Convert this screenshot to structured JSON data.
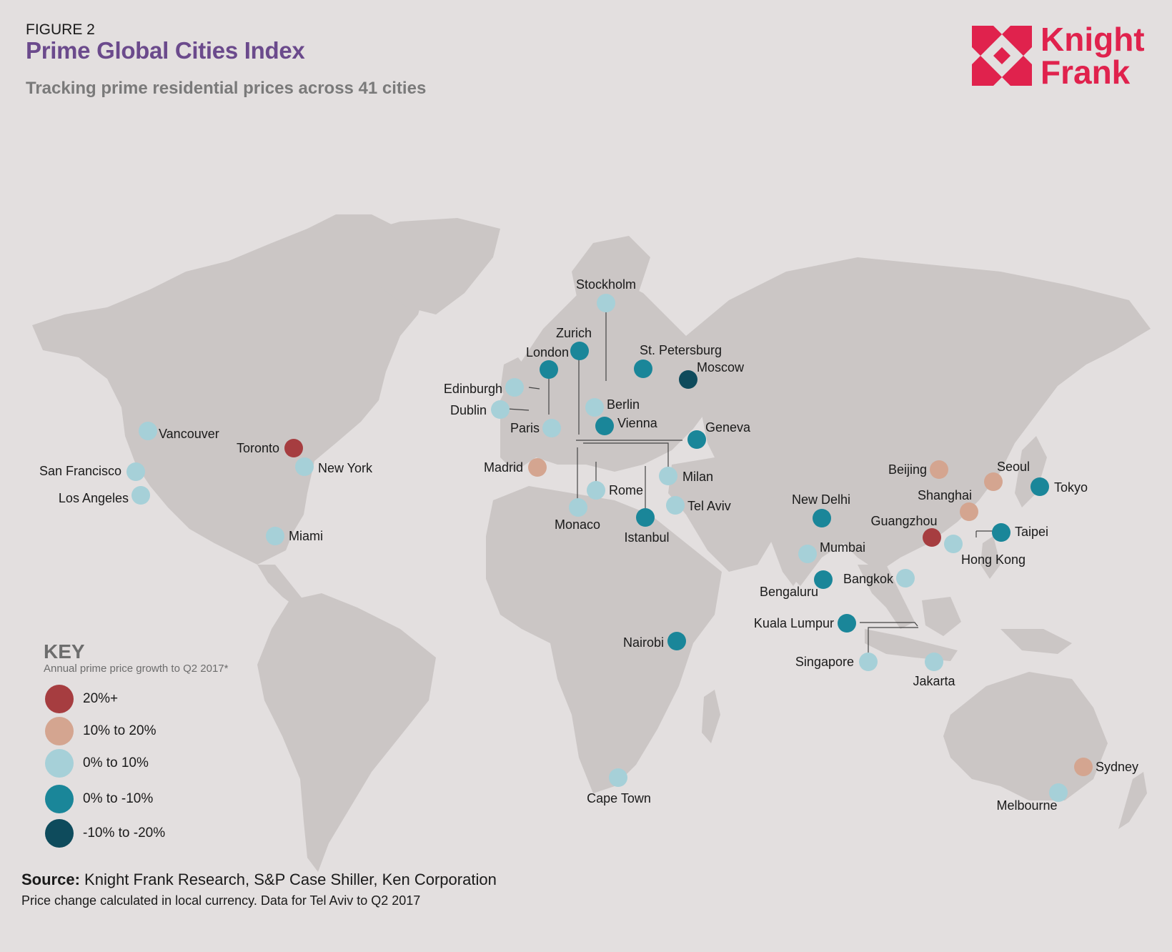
{
  "header": {
    "figure": "FIGURE 2",
    "title": "Prime Global Cities Index",
    "subtitle": "Tracking prime residential prices across 41 cities"
  },
  "logo": {
    "line1": "Knight",
    "line2": "Frank",
    "color": "#e0224d"
  },
  "colors": {
    "land": "#cbc6c5",
    "background": "#e3dfdf",
    "20_plus": "#a63d40",
    "10_to_20": "#d4a590",
    "0_to_10": "#a6d0d8",
    "0_to_minus10": "#1a8699",
    "minus10_to_minus20": "#0e4b5c"
  },
  "key": {
    "title": "KEY",
    "subtitle": "Annual prime price growth to Q2 2017*",
    "items": [
      {
        "label": "20%+",
        "class": "20_plus"
      },
      {
        "label": "10% to 20%",
        "class": "10_to_20"
      },
      {
        "label": "0% to 10%",
        "class": "0_to_10"
      },
      {
        "label": "0% to -10%",
        "class": "0_to_minus10"
      },
      {
        "label": "-10% to -20%",
        "class": "minus10_to_minus20"
      }
    ]
  },
  "cities": [
    {
      "name": "Vancouver",
      "class": "0_to_10"
    },
    {
      "name": "San Francisco",
      "class": "0_to_10"
    },
    {
      "name": "Los Angeles",
      "class": "0_to_10"
    },
    {
      "name": "Toronto",
      "class": "20_plus"
    },
    {
      "name": "New York",
      "class": "0_to_10"
    },
    {
      "name": "Miami",
      "class": "0_to_10"
    },
    {
      "name": "Stockholm",
      "class": "0_to_10"
    },
    {
      "name": "Zurich",
      "class": "0_to_minus10"
    },
    {
      "name": "London",
      "class": "0_to_minus10"
    },
    {
      "name": "St. Petersburg",
      "class": "0_to_minus10"
    },
    {
      "name": "Moscow",
      "class": "minus10_to_minus20"
    },
    {
      "name": "Edinburgh",
      "class": "0_to_10"
    },
    {
      "name": "Dublin",
      "class": "0_to_10"
    },
    {
      "name": "Berlin",
      "class": "0_to_10"
    },
    {
      "name": "Paris",
      "class": "0_to_10"
    },
    {
      "name": "Vienna",
      "class": "0_to_minus10"
    },
    {
      "name": "Geneva",
      "class": "0_to_minus10"
    },
    {
      "name": "Madrid",
      "class": "10_to_20"
    },
    {
      "name": "Milan",
      "class": "0_to_10"
    },
    {
      "name": "Rome",
      "class": "0_to_10"
    },
    {
      "name": "Monaco",
      "class": "0_to_10"
    },
    {
      "name": "Istanbul",
      "class": "0_to_minus10"
    },
    {
      "name": "Tel Aviv",
      "class": "0_to_10"
    },
    {
      "name": "Nairobi",
      "class": "0_to_minus10"
    },
    {
      "name": "Cape Town",
      "class": "0_to_10"
    },
    {
      "name": "New Delhi",
      "class": "0_to_minus10"
    },
    {
      "name": "Mumbai",
      "class": "0_to_10"
    },
    {
      "name": "Bengaluru",
      "class": "0_to_minus10"
    },
    {
      "name": "Bangkok",
      "class": "0_to_10"
    },
    {
      "name": "Kuala Lumpur",
      "class": "0_to_minus10"
    },
    {
      "name": "Singapore",
      "class": "0_to_10"
    },
    {
      "name": "Jakarta",
      "class": "0_to_10"
    },
    {
      "name": "Beijing",
      "class": "10_to_20"
    },
    {
      "name": "Seoul",
      "class": "10_to_20"
    },
    {
      "name": "Tokyo",
      "class": "0_to_minus10"
    },
    {
      "name": "Shanghai",
      "class": "10_to_20"
    },
    {
      "name": "Guangzhou",
      "class": "20_plus"
    },
    {
      "name": "Hong Kong",
      "class": "0_to_10"
    },
    {
      "name": "Taipei",
      "class": "0_to_minus10"
    },
    {
      "name": "Sydney",
      "class": "10_to_20"
    },
    {
      "name": "Melbourne",
      "class": "0_to_10"
    }
  ],
  "source": {
    "label": "Source:",
    "text": " Knight Frank Research, S&P Case Shiller, Ken Corporation"
  },
  "note": "Price change calculated in local currency. Data for Tel Aviv to Q2 2017"
}
